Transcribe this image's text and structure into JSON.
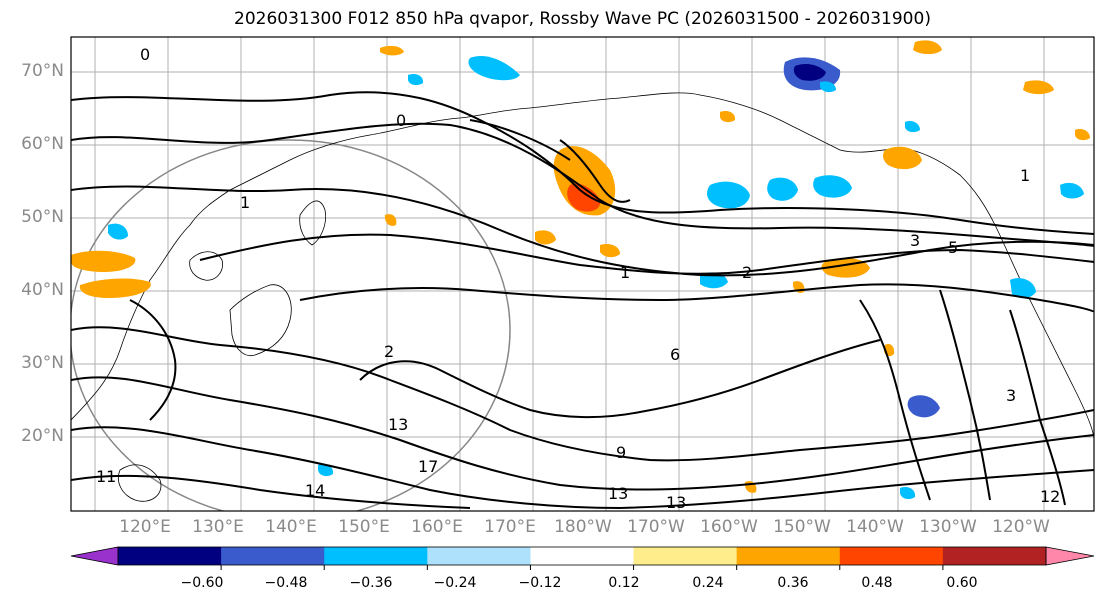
{
  "title": "2026031300 F012 850 hPa qvapor, Rossby Wave PC (2026031500 - 2026031900)",
  "map": {
    "lat_labels": [
      "70°N",
      "60°N",
      "50°N",
      "40°N",
      "30°N",
      "20°N"
    ],
    "lon_labels": [
      "120°E",
      "130°E",
      "140°E",
      "150°E",
      "160°E",
      "170°E",
      "180°W",
      "170°W",
      "160°W",
      "150°W",
      "140°W",
      "130°W",
      "120°W"
    ],
    "contour_labels": [
      "0",
      "1",
      "2",
      "3",
      "5",
      "6",
      "9",
      "13",
      "14",
      "17",
      "11",
      "12"
    ]
  },
  "colorbar": {
    "colors": [
      "#9932cc",
      "#000080",
      "#3a5bcc",
      "#00bfff",
      "#aee1fb",
      "#ffffff",
      "#ffec8b",
      "#ffa500",
      "#ff4500",
      "#b22222",
      "#ff88aa"
    ],
    "ticks": [
      "−0.60",
      "−0.48",
      "−0.36",
      "−0.24",
      "−0.12",
      "0.12",
      "0.24",
      "0.36",
      "0.48",
      "0.60"
    ]
  }
}
